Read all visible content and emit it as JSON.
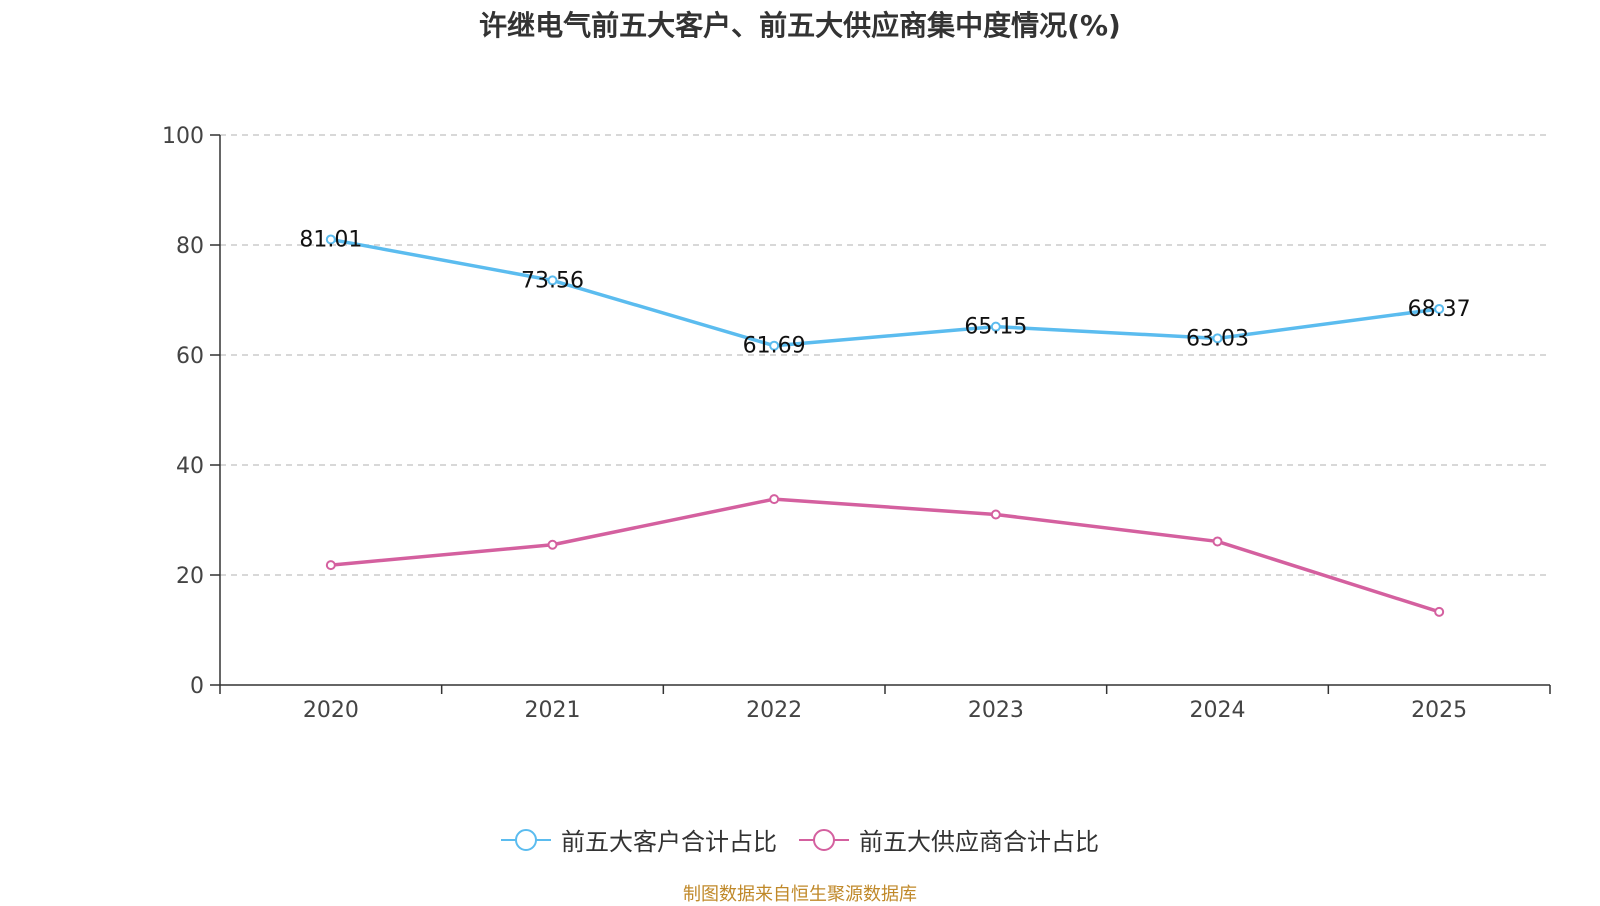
{
  "chart_data": {
    "type": "line",
    "title": "许继电气前五大客户、前五大供应商集中度情况(%)",
    "categories": [
      "2020",
      "2021",
      "2022",
      "2023",
      "2024",
      "2025"
    ],
    "ylim": [
      0,
      100
    ],
    "yticks": [
      0,
      20,
      40,
      60,
      80,
      100
    ],
    "grid": true,
    "legend_position": "bottom",
    "series": [
      {
        "name": "前五大客户合计占比",
        "color": "#5bbcef",
        "values": [
          81.01,
          73.56,
          61.69,
          65.15,
          63.03,
          68.37
        ],
        "labels": [
          "81.01",
          "73.56",
          "61.69",
          "65.15",
          "63.03",
          "68.37"
        ],
        "show_labels": true
      },
      {
        "name": "前五大供应商合计占比",
        "color": "#d4609f",
        "values": [
          21.8,
          25.5,
          33.8,
          31.0,
          26.1,
          13.3
        ],
        "show_labels": false
      }
    ]
  },
  "source": "制图数据来自恒生聚源数据库"
}
